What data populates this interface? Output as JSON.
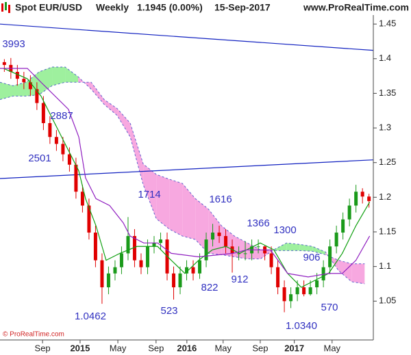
{
  "chart_data": {
    "type": "candlestick",
    "title": "Spot EUR/USD",
    "period": "Weekly",
    "last": "1.1945 (0.00%)",
    "date": "15-Sep-2017",
    "source": "www.ProRealTime.com",
    "copyright": "© ProRealTime.com",
    "x": [
      2,
      5,
      8,
      11,
      14,
      17,
      20,
      23,
      26,
      29,
      32,
      35,
      38,
      41,
      44,
      47,
      50,
      53,
      56,
      59,
      62,
      65,
      68,
      71,
      74,
      77,
      80,
      83,
      86,
      89,
      92,
      95,
      98,
      101,
      104,
      107,
      110,
      113,
      116,
      119,
      122,
      125,
      128,
      131,
      134,
      137,
      140,
      143,
      146,
      149,
      152,
      155,
      158,
      161,
      164,
      167,
      170
    ],
    "open": [
      1.395,
      1.391,
      1.381,
      1.371,
      1.366,
      1.356,
      1.336,
      1.307,
      1.287,
      1.277,
      1.262,
      1.247,
      1.208,
      1.188,
      1.149,
      1.109,
      1.07,
      1.09,
      1.099,
      1.119,
      1.144,
      1.109,
      1.099,
      1.129,
      1.134,
      1.139,
      1.09,
      1.07,
      1.09,
      1.099,
      1.09,
      1.109,
      1.139,
      1.149,
      1.144,
      1.129,
      1.119,
      1.119,
      1.119,
      1.129,
      1.129,
      1.119,
      1.099,
      1.07,
      1.05,
      1.06,
      1.07,
      1.06,
      1.07,
      1.08,
      1.099,
      1.129,
      1.149,
      1.168,
      1.188,
      1.208,
      1.201
    ],
    "high": [
      1.3993,
      1.401,
      1.391,
      1.381,
      1.376,
      1.366,
      1.346,
      1.317,
      1.297,
      1.287,
      1.272,
      1.257,
      1.218,
      1.198,
      1.159,
      1.119,
      1.1,
      1.109,
      1.129,
      1.1714,
      1.154,
      1.119,
      1.139,
      1.144,
      1.149,
      1.149,
      1.1,
      1.1,
      1.109,
      1.109,
      1.119,
      1.149,
      1.1616,
      1.159,
      1.154,
      1.139,
      1.129,
      1.1366,
      1.139,
      1.139,
      1.13,
      1.129,
      1.109,
      1.08,
      1.07,
      1.08,
      1.08,
      1.08,
      1.0906,
      1.109,
      1.139,
      1.159,
      1.178,
      1.198,
      1.218,
      1.213,
      1.205
    ],
    "low": [
      1.381,
      1.371,
      1.361,
      1.356,
      1.346,
      1.326,
      1.297,
      1.277,
      1.267,
      1.252,
      1.237,
      1.198,
      1.178,
      1.139,
      1.099,
      1.0462,
      1.06,
      1.08,
      1.089,
      1.109,
      1.099,
      1.089,
      1.089,
      1.119,
      1.124,
      1.08,
      1.0523,
      1.06,
      1.08,
      1.08,
      1.0822,
      1.099,
      1.129,
      1.134,
      1.119,
      1.0912,
      1.109,
      1.109,
      1.109,
      1.119,
      1.109,
      1.089,
      1.06,
      1.034,
      1.04,
      1.05,
      1.057,
      1.058,
      1.06,
      1.07,
      1.089,
      1.119,
      1.139,
      1.158,
      1.178,
      1.191,
      1.185
    ],
    "close": [
      1.391,
      1.381,
      1.371,
      1.366,
      1.356,
      1.336,
      1.307,
      1.287,
      1.277,
      1.262,
      1.247,
      1.208,
      1.188,
      1.149,
      1.109,
      1.07,
      1.09,
      1.099,
      1.119,
      1.144,
      1.109,
      1.099,
      1.129,
      1.134,
      1.139,
      1.09,
      1.07,
      1.09,
      1.099,
      1.09,
      1.109,
      1.139,
      1.149,
      1.144,
      1.129,
      1.119,
      1.119,
      1.119,
      1.129,
      1.129,
      1.119,
      1.099,
      1.07,
      1.05,
      1.06,
      1.07,
      1.06,
      1.07,
      1.08,
      1.099,
      1.129,
      1.149,
      1.168,
      1.188,
      1.208,
      1.201,
      1.1945
    ],
    "up_color": "#1a9a1a",
    "down_color": "#e00000",
    "xlim": [
      0,
      172
    ],
    "xticks": [
      {
        "value": 19.6,
        "label": "Sep"
      },
      {
        "value": 36.9,
        "label": "2015"
      },
      {
        "value": 54.3,
        "label": "May"
      },
      {
        "value": 71.9,
        "label": "Sep"
      },
      {
        "value": 86.1,
        "label": "2016"
      },
      {
        "value": 102.8,
        "label": "May"
      },
      {
        "value": 119.9,
        "label": "Sep"
      },
      {
        "value": 135.6,
        "label": "2017"
      },
      {
        "value": 153,
        "label": "May"
      }
    ],
    "ylim": [
      0.994,
      1.463
    ],
    "yticks": [
      1.05,
      1.1,
      1.15,
      1.2,
      1.25,
      1.3,
      1.35,
      1.4,
      1.45
    ],
    "lines": [
      {
        "color": "#10a010",
        "x": [
          1.6,
          12.6,
          18.9,
          28.4,
          36.3,
          39.4,
          44.2,
          48.9,
          55.2,
          63.1,
          72.6,
          78.9,
          85.2,
          91.5,
          97.8,
          104.1,
          110.4,
          119.9,
          126.2,
          132.5,
          138.8,
          145.1,
          151.4,
          157.7,
          164,
          170.3
        ],
        "values": [
          1.386,
          1.371,
          1.346,
          1.287,
          1.238,
          1.198,
          1.159,
          1.109,
          1.119,
          1.129,
          1.129,
          1.109,
          1.09,
          1.109,
          1.124,
          1.129,
          1.119,
          1.134,
          1.124,
          1.09,
          1.07,
          1.08,
          1.09,
          1.119,
          1.159,
          1.193
        ]
      },
      {
        "color": "#9020c0",
        "x": [
          0,
          12.6,
          18.9,
          31.5,
          36.3,
          39.4,
          44.2,
          50.5,
          56.8,
          59.9,
          66.2,
          72.6,
          78.9,
          91.5,
          107.3,
          113.6,
          124.6,
          132.5,
          142,
          151.4,
          157.7,
          164,
          170.3
        ],
        "values": [
          1.386,
          1.386,
          1.366,
          1.327,
          1.287,
          1.228,
          1.198,
          1.188,
          1.163,
          1.144,
          1.134,
          1.134,
          1.119,
          1.114,
          1.119,
          1.124,
          1.124,
          1.09,
          1.085,
          1.09,
          1.09,
          1.109,
          1.144
        ]
      }
    ],
    "cloud": {
      "x": [
        0,
        6,
        12,
        18,
        24,
        30,
        36,
        42,
        48,
        54,
        60,
        66,
        72,
        78,
        84,
        90,
        96,
        102,
        108,
        114,
        120,
        126,
        132,
        138,
        144,
        150,
        156,
        162,
        168
      ],
      "span_a": [
        1.366,
        1.361,
        1.366,
        1.381,
        1.388,
        1.388,
        1.374,
        1.356,
        1.334,
        1.318,
        1.287,
        1.218,
        1.169,
        1.154,
        1.144,
        1.139,
        1.119,
        1.117,
        1.114,
        1.111,
        1.111,
        1.124,
        1.134,
        1.132,
        1.129,
        1.121,
        1.094,
        1.078,
        1.075
      ],
      "span_b": [
        1.341,
        1.346,
        1.346,
        1.348,
        1.361,
        1.366,
        1.366,
        1.366,
        1.341,
        1.328,
        1.307,
        1.248,
        1.233,
        1.226,
        1.22,
        1.198,
        1.183,
        1.159,
        1.144,
        1.134,
        1.124,
        1.123,
        1.123,
        1.123,
        1.122,
        1.117,
        1.109,
        1.104,
        1.104
      ],
      "up_color": "#9ef09e",
      "down_color": "#f7a8e0",
      "edge_color": "#2030c0"
    },
    "trendlines": [
      {
        "color": "#1020c0",
        "x": [
          0,
          172
        ],
        "values": [
          1.45,
          1.412
        ]
      },
      {
        "color": "#1020c0",
        "x": [
          0,
          172
        ],
        "values": [
          1.227,
          1.254
        ]
      }
    ],
    "annotation_color": "#3030c0",
    "annotations": [
      "3993",
      "2887",
      "2501",
      "1714",
      "1616",
      "1366",
      "1300",
      "906",
      "1.0462",
      "523",
      "822",
      "912",
      "1.0340",
      "570"
    ]
  }
}
